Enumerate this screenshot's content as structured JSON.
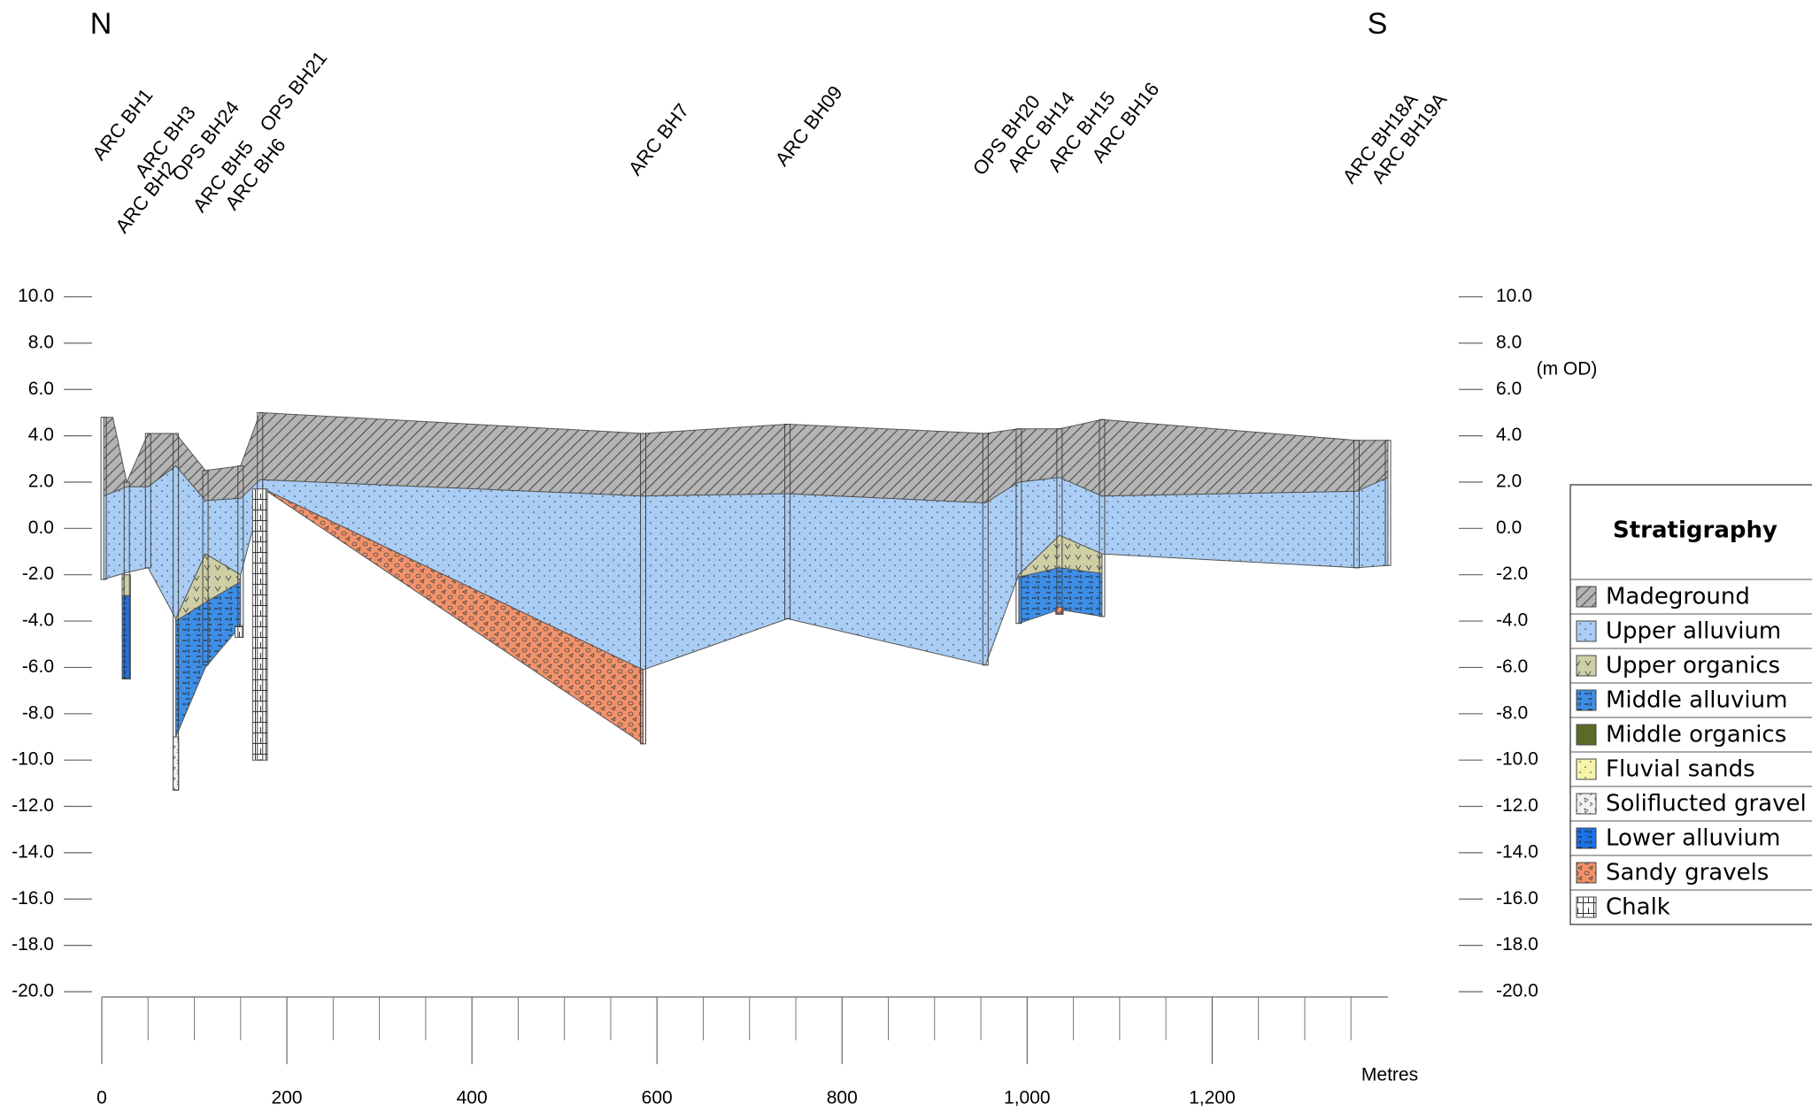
{
  "chart_data": {
    "type": "cross-section",
    "north_label": "N",
    "south_label": "S",
    "x_label": "Metres",
    "y_label": "(m OD)",
    "legend_title": "Stratigraphy",
    "xlim": [
      0,
      1390
    ],
    "ylim": [
      -20,
      10
    ],
    "xticks": [
      0,
      200,
      400,
      600,
      800,
      {
        "value": 1000,
        "label": "1,000"
      },
      {
        "value": 1200,
        "label": "1,200"
      }
    ],
    "xminorticks": [
      50,
      100,
      150,
      250,
      300,
      350,
      450,
      500,
      550,
      650,
      700,
      750,
      850,
      900,
      950,
      1050,
      1100,
      1150,
      1250,
      1300,
      1350
    ],
    "yticks": [
      {
        "value": 10,
        "label": "10.0"
      },
      {
        "value": 8,
        "label": "8.0"
      },
      {
        "value": 6,
        "label": "6.0"
      },
      {
        "value": 4,
        "label": "4.0"
      },
      {
        "value": 2,
        "label": "2.0"
      },
      {
        "value": 0,
        "label": "0.0"
      },
      {
        "value": -2,
        "label": "-2.0"
      },
      {
        "value": -4,
        "label": "-4.0"
      },
      {
        "value": -6,
        "label": "-6.0"
      },
      {
        "value": -8,
        "label": "-8.0"
      },
      {
        "value": -10,
        "label": "-10.0"
      },
      {
        "value": -12,
        "label": "-12.0"
      },
      {
        "value": -14,
        "label": "-14.0"
      },
      {
        "value": -16,
        "label": "-16.0"
      },
      {
        "value": -18,
        "label": "-18.0"
      },
      {
        "value": -20,
        "label": "-20.0"
      }
    ],
    "boreholes": [
      {
        "name": "ARC BH1",
        "x": 2,
        "top": 4.8,
        "base": -2.2
      },
      {
        "name": "ARC BH3",
        "x": 50,
        "top": 4.1,
        "base": -1.7
      },
      {
        "name": "ARC BH2",
        "x": 27,
        "top": 2.0,
        "base": -6.5
      },
      {
        "name": "OPS BH24",
        "x": 80,
        "top": 4.1,
        "base": -11.3
      },
      {
        "name": "ARC BH5",
        "x": 112,
        "top": 2.5,
        "base": -5.9
      },
      {
        "name": "ARC BH6",
        "x": 150,
        "top": 2.7,
        "base": -4.7
      },
      {
        "name": "OPS BH21",
        "x": 171,
        "top": 5.0,
        "base": -10.0
      },
      {
        "name": "ARC BH7",
        "x": 585,
        "top": 4.1,
        "base": -9.3
      },
      {
        "name": "ARC BH09",
        "x": 741,
        "top": 4.5,
        "base": -3.9
      },
      {
        "name": "OPS BH20",
        "x": 955,
        "top": 4.1,
        "base": -5.9
      },
      {
        "name": "ARC BH14",
        "x": 991,
        "top": 4.3,
        "base": -4.1
      },
      {
        "name": "ARC BH15",
        "x": 1035,
        "top": 4.3,
        "base": -3.7
      },
      {
        "name": "ARC BH16",
        "x": 1081,
        "top": 4.7,
        "base": -3.8
      },
      {
        "name": "ARC BH18A",
        "x": 1356,
        "top": 3.8,
        "base": -1.7
      },
      {
        "name": "ARC BH19A",
        "x": 1390,
        "top": 3.8,
        "base": -1.6
      }
    ],
    "layers": [
      {
        "name": "Madeground",
        "color": "#b4b4b4",
        "polygons": [
          {
            "x": [
              2,
              12,
              27,
              50,
              80,
              112,
              150,
              171,
              585,
              741,
              955,
              991,
              1035,
              1081,
              1356,
              1390,
              1390,
              1356,
              1081,
              1035,
              991,
              955,
              741,
              585,
              171,
              150,
              112,
              80,
              50,
              27,
              2
            ],
            "y": [
              4.8,
              4.8,
              2.0,
              4.1,
              4.1,
              2.5,
              2.7,
              5.0,
              4.1,
              4.5,
              4.1,
              4.3,
              4.3,
              4.7,
              3.8,
              3.8,
              2.2,
              1.6,
              1.4,
              2.2,
              2.0,
              1.1,
              1.5,
              1.4,
              2.1,
              1.3,
              1.2,
              2.7,
              1.8,
              1.8,
              1.4
            ]
          }
        ]
      },
      {
        "name": "Upper alluvium",
        "color": "#a9cdf5",
        "polygons": [
          {
            "x": [
              2,
              27,
              50,
              80,
              112,
              150,
              171,
              585,
              741,
              955,
              991,
              1035,
              1081,
              1356,
              1390,
              1390,
              1356,
              1081,
              1035,
              991,
              955,
              741,
              585,
              175,
              150,
              112,
              80,
              50,
              27,
              2
            ],
            "y": [
              1.4,
              1.8,
              1.8,
              2.7,
              1.2,
              1.3,
              2.1,
              1.4,
              1.5,
              1.1,
              2.0,
              2.2,
              1.4,
              1.6,
              2.2,
              -1.6,
              -1.7,
              -1.1,
              -0.3,
              -2.0,
              -5.9,
              -3.9,
              -6.1,
              1.7,
              -2.0,
              -1.1,
              -3.9,
              -1.7,
              -1.9,
              -2.2
            ]
          }
        ]
      },
      {
        "name": "Upper organics",
        "color": "#cfcfa6",
        "polygons": [
          {
            "x": [
              80,
              112,
              150,
              150,
              112,
              80
            ],
            "y": [
              -3.9,
              -1.1,
              -2.0,
              -2.3,
              -3.2,
              -4.0
            ]
          },
          {
            "x": [
              22,
              31,
              31,
              22
            ],
            "y": [
              -2.0,
              -2.0,
              -2.9,
              -2.9
            ]
          },
          {
            "x": [
              991,
              1035,
              1081,
              1081,
              1035,
              991
            ],
            "y": [
              -2.0,
              -0.3,
              -1.1,
              -1.95,
              -1.7,
              -2.1
            ]
          }
        ]
      },
      {
        "name": "Middle alluvium",
        "color": "#3d8ee6",
        "polygons": [
          {
            "x": [
              80,
              112,
              150,
              150,
              112,
              80
            ],
            "y": [
              -4.0,
              -3.2,
              -2.3,
              -4.2,
              -6.0,
              -9.0
            ]
          },
          {
            "x": [
              991,
              1035,
              1081,
              1081,
              1035,
              991
            ],
            "y": [
              -2.1,
              -1.7,
              -1.95,
              -3.8,
              -3.5,
              -4.1
            ]
          }
        ]
      },
      {
        "name": "Middle organics",
        "color": "#5a6b28",
        "polygons": []
      },
      {
        "name": "Fluvial sands",
        "color": "#f7f3a8",
        "polygons": []
      },
      {
        "name": "Soliflucted gravel",
        "color": "#f2f2f2",
        "polygons": [
          {
            "x": [
              77,
              83,
              83,
              77
            ],
            "y": [
              -9.0,
              -9.0,
              -11.3,
              -11.3
            ]
          }
        ]
      },
      {
        "name": "Lower alluvium",
        "color": "#1a73e8",
        "polygons": [
          {
            "x": [
              22,
              31,
              31,
              22
            ],
            "y": [
              -2.9,
              -2.9,
              -6.5,
              -6.5
            ]
          }
        ]
      },
      {
        "name": "Sandy gravels",
        "color": "#f2926a",
        "polygons": [
          {
            "x": [
              175,
              585,
              585
            ],
            "y": [
              1.7,
              -6.1,
              -9.3
            ]
          },
          {
            "x": [
              1031,
              1039,
              1039,
              1031
            ],
            "y": [
              -3.4,
              -3.4,
              -3.7,
              -3.7
            ]
          }
        ]
      },
      {
        "name": "Chalk",
        "color": "#ffffff",
        "polygons": [
          {
            "x": [
              163,
              179,
              179,
              163
            ],
            "y": [
              1.7,
              1.7,
              -10.0,
              -10.0
            ]
          },
          {
            "x": [
              144,
              152,
              152,
              144
            ],
            "y": [
              -4.2,
              -4.2,
              -4.7,
              -4.7
            ]
          }
        ]
      }
    ]
  }
}
